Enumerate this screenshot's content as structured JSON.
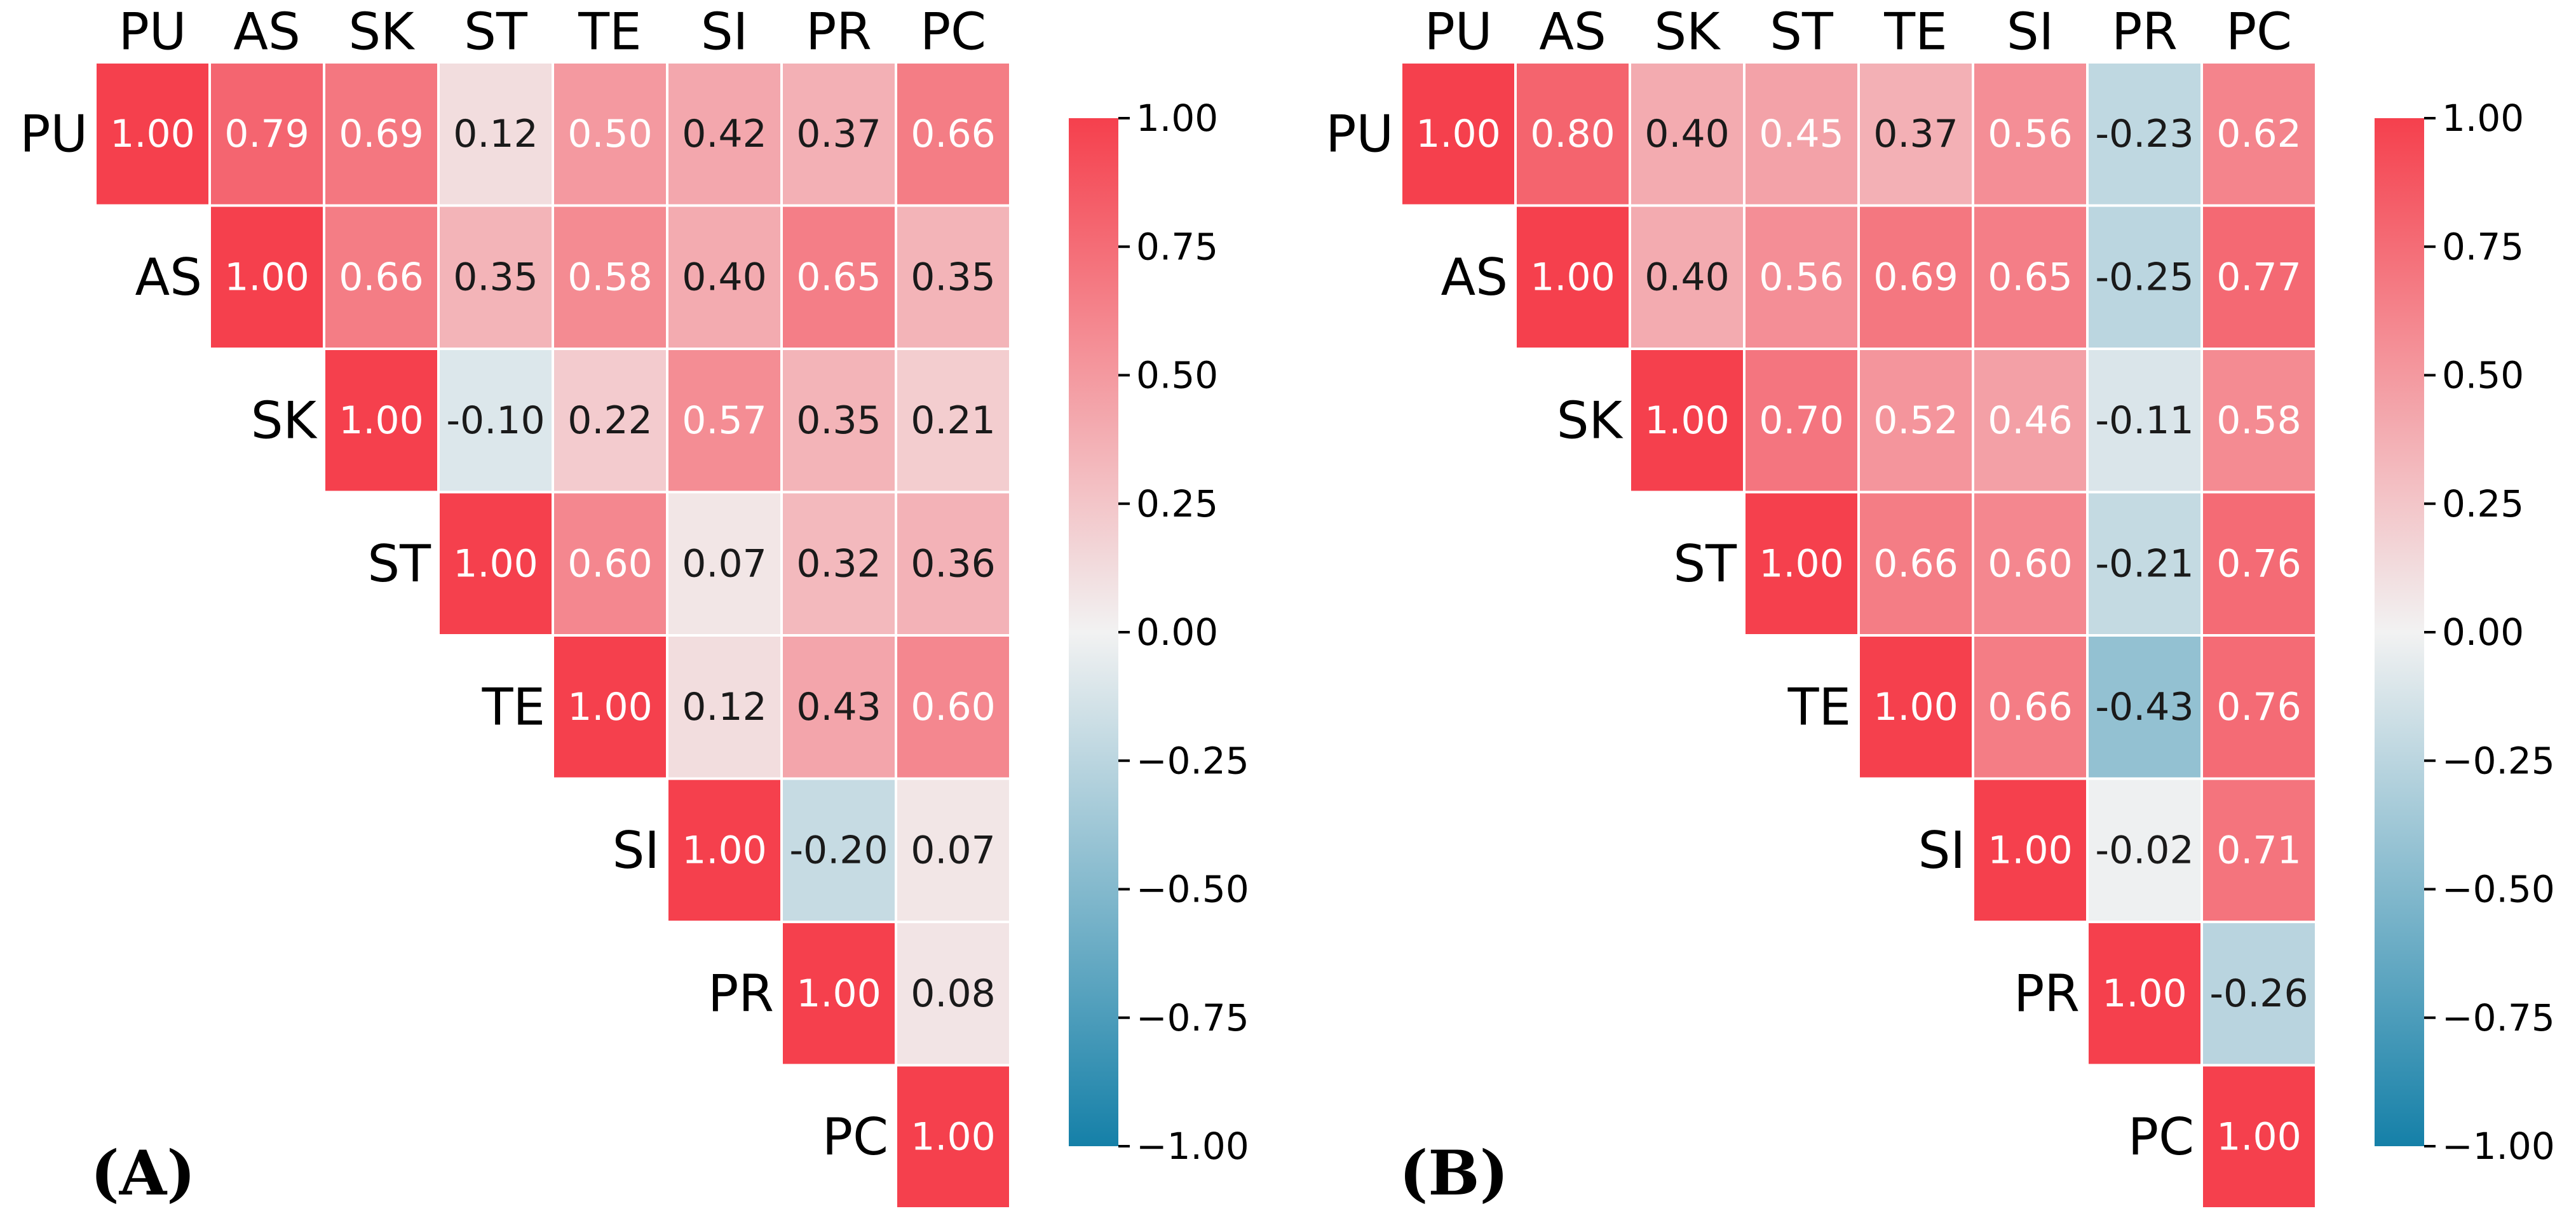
{
  "chart_data": [
    {
      "type": "heatmap",
      "panel_label": "(A)",
      "variables": [
        "PU",
        "AS",
        "SK",
        "ST",
        "TE",
        "SI",
        "PR",
        "PC"
      ],
      "matrix": [
        [
          1.0,
          0.79,
          0.69,
          0.12,
          0.5,
          0.42,
          0.37,
          0.66
        ],
        [
          null,
          1.0,
          0.66,
          0.35,
          0.58,
          0.4,
          0.65,
          0.35
        ],
        [
          null,
          null,
          1.0,
          -0.1,
          0.22,
          0.57,
          0.35,
          0.21
        ],
        [
          null,
          null,
          null,
          1.0,
          0.6,
          0.07,
          0.32,
          0.36
        ],
        [
          null,
          null,
          null,
          null,
          1.0,
          0.12,
          0.43,
          0.6
        ],
        [
          null,
          null,
          null,
          null,
          null,
          1.0,
          -0.2,
          0.07
        ],
        [
          null,
          null,
          null,
          null,
          null,
          null,
          1.0,
          0.08
        ],
        [
          null,
          null,
          null,
          null,
          null,
          null,
          null,
          1.0
        ]
      ],
      "value_labels": [
        [
          "1.00",
          "0.79",
          "0.69",
          "0.12",
          "0.50",
          "0.42",
          "0.37",
          "0.66"
        ],
        [
          null,
          "1.00",
          "0.66",
          "0.35",
          "0.58",
          "0.40",
          "0.65",
          "0.35"
        ],
        [
          null,
          null,
          "1.00",
          "-0.10",
          "0.22",
          "0.57",
          "0.35",
          "0.21"
        ],
        [
          null,
          null,
          null,
          "1.00",
          "0.60",
          "0.07",
          "0.32",
          "0.36"
        ],
        [
          null,
          null,
          null,
          null,
          "1.00",
          "0.12",
          "0.43",
          "0.60"
        ],
        [
          null,
          null,
          null,
          null,
          null,
          "1.00",
          "-0.20",
          "0.07"
        ],
        [
          null,
          null,
          null,
          null,
          null,
          null,
          "1.00",
          "0.08"
        ],
        [
          null,
          null,
          null,
          null,
          null,
          null,
          null,
          "1.00"
        ]
      ],
      "colorbar": {
        "range": [
          -1.0,
          1.0
        ],
        "ticks": [
          1.0,
          0.75,
          0.5,
          0.25,
          0.0,
          -0.25,
          -0.5,
          -0.75,
          -1.0
        ],
        "tick_labels": [
          "1.00",
          "0.75",
          "0.50",
          "0.25",
          "0.00",
          "−0.25",
          "−0.50",
          "−0.75",
          "−1.00"
        ]
      }
    },
    {
      "type": "heatmap",
      "panel_label": "(B)",
      "variables": [
        "PU",
        "AS",
        "SK",
        "ST",
        "TE",
        "SI",
        "PR",
        "PC"
      ],
      "matrix": [
        [
          1.0,
          0.8,
          0.4,
          0.45,
          0.37,
          0.56,
          -0.23,
          0.62
        ],
        [
          null,
          1.0,
          0.4,
          0.56,
          0.69,
          0.65,
          -0.25,
          0.77
        ],
        [
          null,
          null,
          1.0,
          0.7,
          0.52,
          0.46,
          -0.11,
          0.58
        ],
        [
          null,
          null,
          null,
          1.0,
          0.66,
          0.6,
          -0.21,
          0.76
        ],
        [
          null,
          null,
          null,
          null,
          1.0,
          0.66,
          -0.43,
          0.76
        ],
        [
          null,
          null,
          null,
          null,
          null,
          1.0,
          -0.02,
          0.71
        ],
        [
          null,
          null,
          null,
          null,
          null,
          null,
          1.0,
          -0.26
        ],
        [
          null,
          null,
          null,
          null,
          null,
          null,
          null,
          1.0
        ]
      ],
      "value_labels": [
        [
          "1.00",
          "0.80",
          "0.40",
          "0.45",
          "0.37",
          "0.56",
          "-0.23",
          "0.62"
        ],
        [
          null,
          "1.00",
          "0.40",
          "0.56",
          "0.69",
          "0.65",
          "-0.25",
          "0.77"
        ],
        [
          null,
          null,
          "1.00",
          "0.70",
          "0.52",
          "0.46",
          "-0.11",
          "0.58"
        ],
        [
          null,
          null,
          null,
          "1.00",
          "0.66",
          "0.60",
          "-0.21",
          "0.76"
        ],
        [
          null,
          null,
          null,
          null,
          "1.00",
          "0.66",
          "-0.43",
          "0.76"
        ],
        [
          null,
          null,
          null,
          null,
          null,
          "1.00",
          "-0.02",
          "0.71"
        ],
        [
          null,
          null,
          null,
          null,
          null,
          null,
          "1.00",
          "-0.26"
        ],
        [
          null,
          null,
          null,
          null,
          null,
          null,
          null,
          "1.00"
        ]
      ],
      "colorbar": {
        "range": [
          -1.0,
          1.0
        ],
        "ticks": [
          1.0,
          0.75,
          0.5,
          0.25,
          0.0,
          -0.25,
          -0.5,
          -0.75,
          -1.0
        ],
        "tick_labels": [
          "1.00",
          "0.75",
          "0.50",
          "0.25",
          "0.00",
          "−0.25",
          "−0.50",
          "−0.75",
          "−1.00"
        ]
      }
    }
  ],
  "colors": {
    "positive": "#f5404d",
    "neutral": "#f2f2f2",
    "negative": "#1580a8",
    "text_light": "#ffffff",
    "text_dark": "#1a1a1a"
  }
}
